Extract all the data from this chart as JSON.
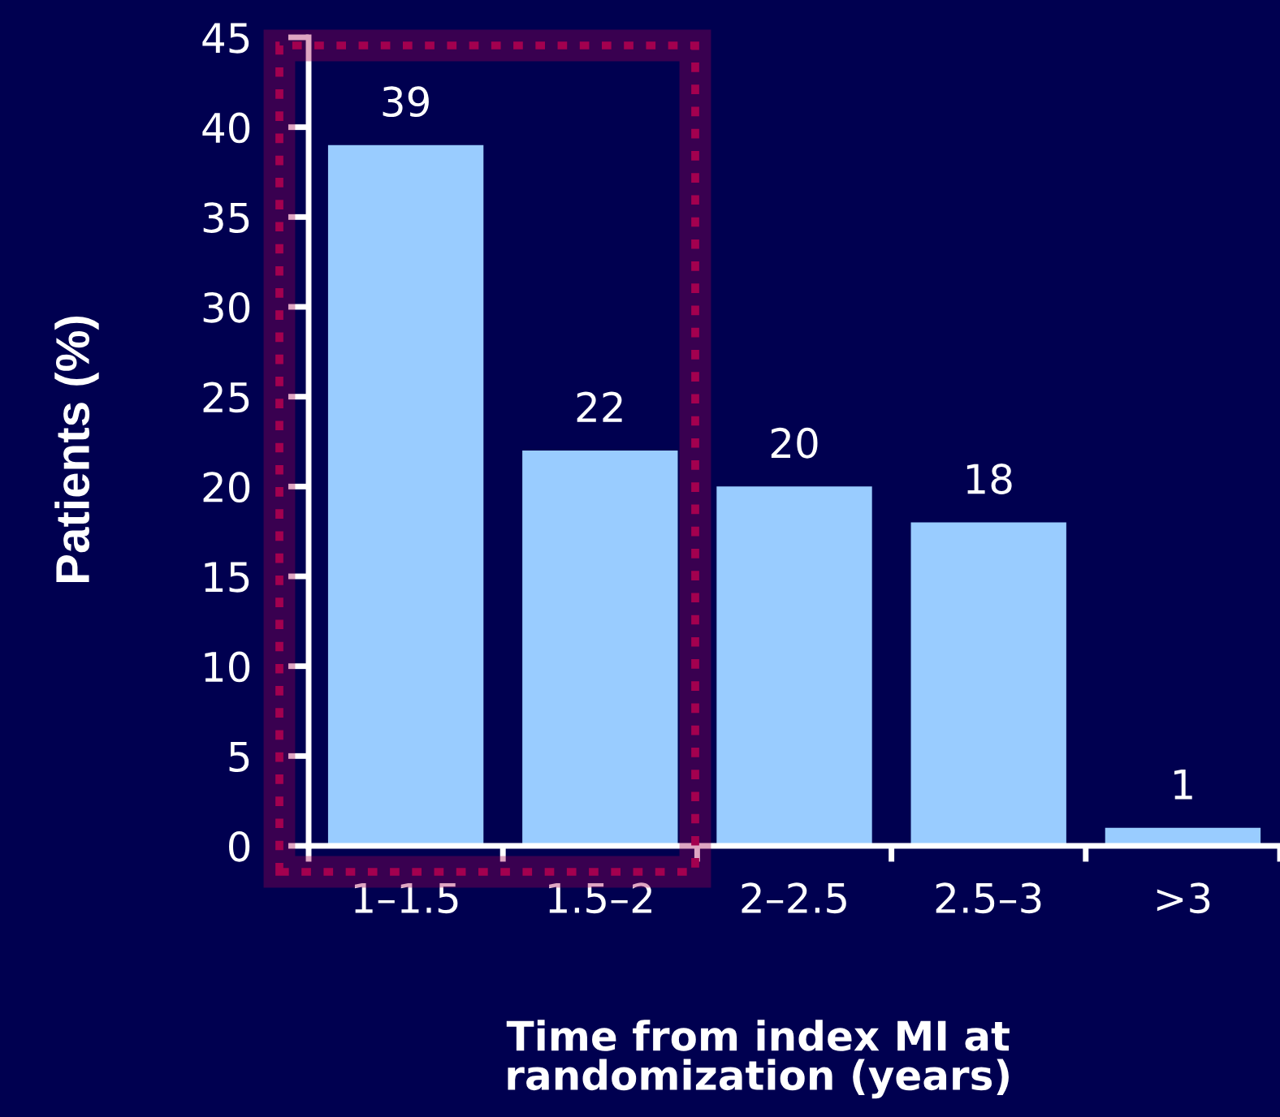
{
  "chart_data": {
    "type": "bar",
    "xlabel": "Time from index MI at\nrandomization (years)",
    "ylabel": "Patients (%)",
    "categories": [
      "1–1.5",
      "1.5–2",
      "2–2.5",
      "2.5–3",
      ">3"
    ],
    "values": [
      39,
      22,
      20,
      18,
      1
    ],
    "color": "#99ccff",
    "ylim": [
      0,
      45
    ],
    "yticks": [
      0,
      5,
      10,
      15,
      20,
      25,
      30,
      35,
      40,
      45
    ],
    "grid": false,
    "data_labels": true
  }
}
